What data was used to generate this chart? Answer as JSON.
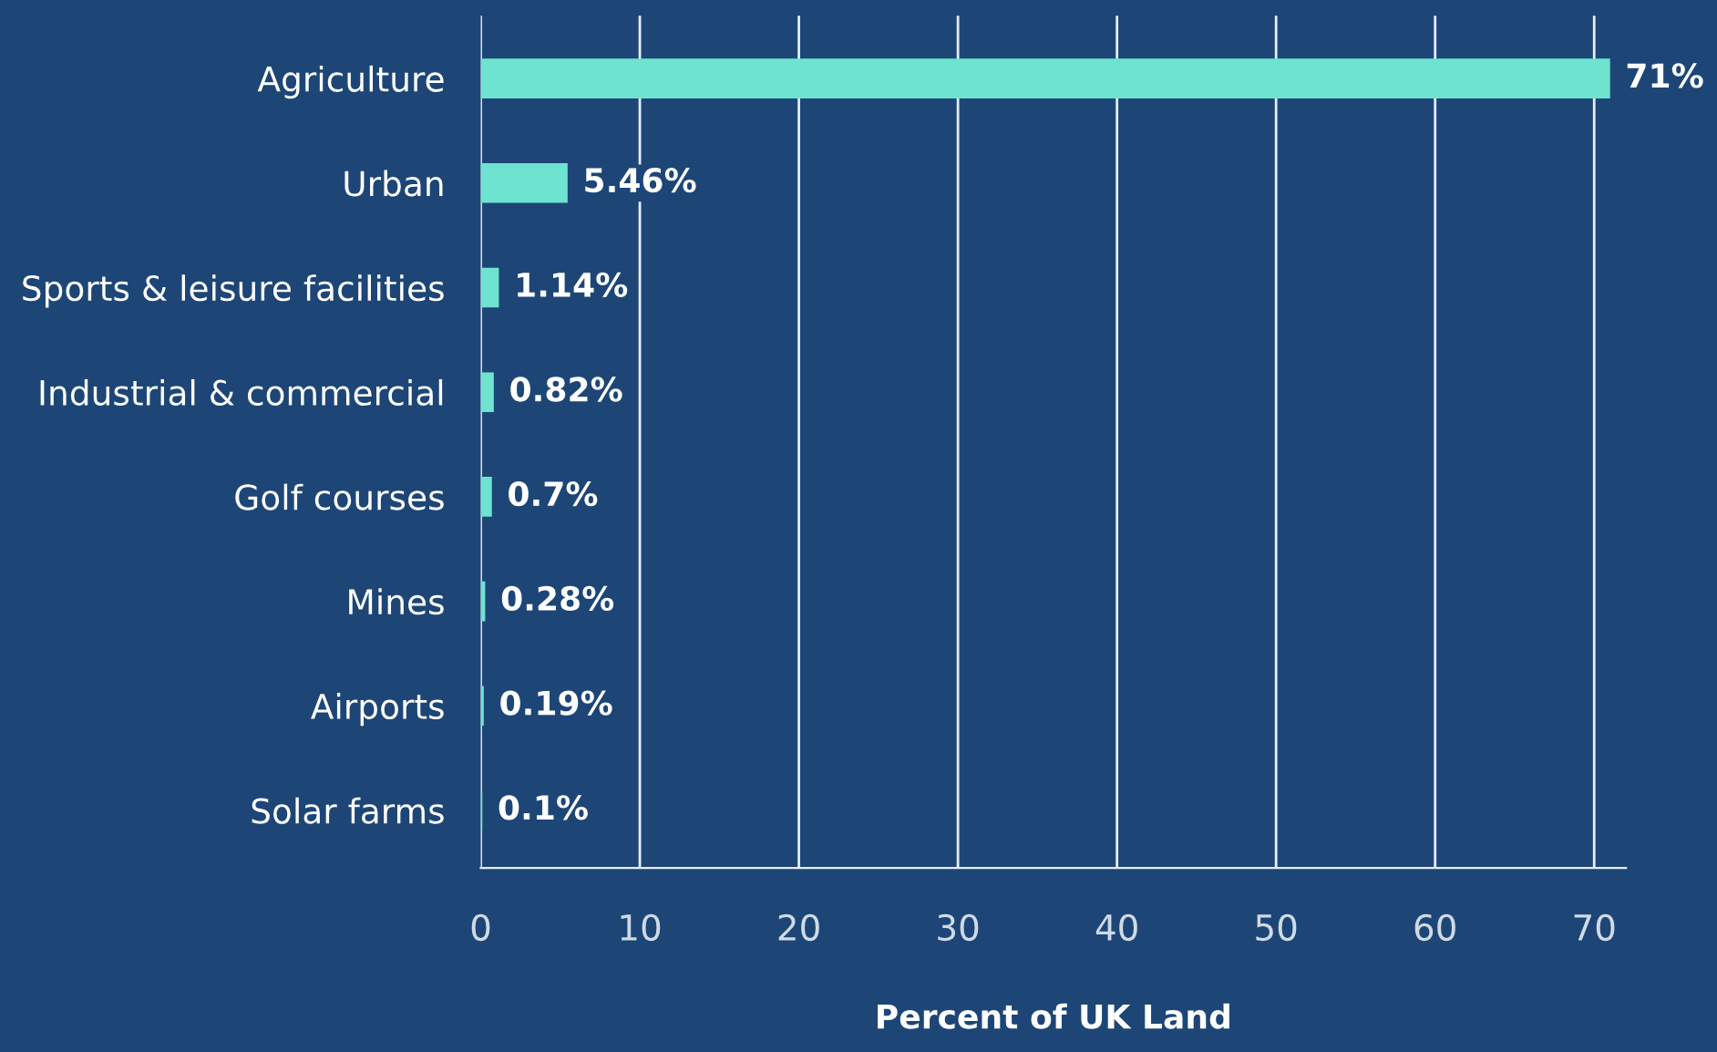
{
  "chart_data": {
    "type": "bar",
    "orientation": "horizontal",
    "xlabel": "Percent of UK Land",
    "categories": [
      "Agriculture",
      "Urban",
      "Sports & leisure facilities",
      "Industrial & commercial",
      "Golf courses",
      "Mines",
      "Airports",
      "Solar farms"
    ],
    "values": [
      71,
      5.46,
      1.14,
      0.82,
      0.7,
      0.28,
      0.19,
      0.1
    ],
    "value_labels": [
      "71%",
      "5.46%",
      "1.14%",
      "0.82%",
      "0.7%",
      "0.28%",
      "0.19%",
      "0.1%"
    ],
    "color": "#6ee3cf",
    "xlim": [
      0,
      72
    ],
    "xticks": [
      0,
      10,
      20,
      30,
      40,
      50,
      60,
      70
    ],
    "grid": "x",
    "legend": false
  }
}
